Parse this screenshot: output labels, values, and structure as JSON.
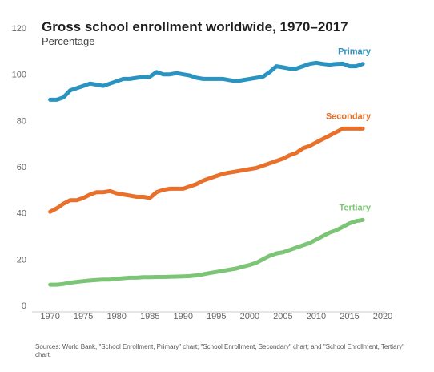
{
  "chart_data": {
    "type": "line",
    "title": "Gross school enrollment worldwide, 1970–2017",
    "subtitle": "Percentage",
    "xlabel": "",
    "ylabel": "",
    "xlim": [
      1968,
      2020
    ],
    "ylim": [
      0,
      120
    ],
    "x_ticks": [
      1970,
      1975,
      1980,
      1985,
      1990,
      1995,
      2000,
      2005,
      2010,
      2015,
      2020
    ],
    "y_ticks": [
      0,
      20,
      40,
      60,
      80,
      100,
      120
    ],
    "grid": false,
    "x": [
      1970,
      1971,
      1972,
      1973,
      1974,
      1975,
      1976,
      1977,
      1978,
      1979,
      1980,
      1981,
      1982,
      1983,
      1984,
      1985,
      1986,
      1987,
      1988,
      1989,
      1990,
      1991,
      1992,
      1993,
      1994,
      1995,
      1996,
      1997,
      1998,
      1999,
      2000,
      2001,
      2002,
      2003,
      2004,
      2005,
      2006,
      2007,
      2008,
      2009,
      2010,
      2011,
      2012,
      2013,
      2014,
      2015,
      2016,
      2017
    ],
    "series": [
      {
        "name": "Primary",
        "color": "#2b93c0",
        "values": [
          89,
          89,
          90,
          93,
          94,
          95,
          96,
          95.5,
          95,
          96,
          97,
          98,
          98,
          98.5,
          98.8,
          99,
          101,
          100,
          100,
          100.5,
          100,
          99.5,
          98.5,
          98,
          98,
          98,
          98,
          97.5,
          97,
          97.5,
          98,
          98.5,
          99,
          101,
          103.5,
          103,
          102.5,
          102.5,
          103.5,
          104.5,
          105,
          104.5,
          104.2,
          104.5,
          104.6,
          103.5,
          103.5,
          104.5
        ]
      },
      {
        "name": "Secondary",
        "color": "#e8702a",
        "values": [
          40.5,
          42,
          44,
          45.5,
          45.5,
          46.5,
          48,
          49,
          49,
          49.5,
          48.5,
          48,
          47.5,
          47,
          47,
          46.5,
          49,
          50,
          50.5,
          50.5,
          50.5,
          51.5,
          52.5,
          54,
          55,
          56,
          57,
          57.5,
          58,
          58.5,
          59,
          59.5,
          60.5,
          61.5,
          62.5,
          63.5,
          65,
          66,
          68,
          69,
          70.5,
          72,
          73.5,
          75,
          76.5,
          76.5,
          76.5,
          76.5
        ]
      },
      {
        "name": "Tertiary",
        "color": "#7cc576",
        "values": [
          9,
          9,
          9.3,
          9.8,
          10.2,
          10.5,
          10.8,
          11,
          11.2,
          11.2,
          11.5,
          11.8,
          12,
          12,
          12.2,
          12.2,
          12.3,
          12.3,
          12.4,
          12.5,
          12.6,
          12.7,
          13,
          13.5,
          14,
          14.5,
          15,
          15.5,
          16,
          16.8,
          17.5,
          18.5,
          20,
          21.5,
          22.5,
          23,
          24,
          25,
          26,
          27,
          28.5,
          30,
          31.5,
          32.5,
          34,
          35.5,
          36.5,
          37
        ]
      }
    ],
    "source": "Sources: World Bank, \"School Enrollment, Primary\" chart; \"School Enrollment, Secondary\" chart; and \"School Enrollment, Tertiary\" chart."
  }
}
